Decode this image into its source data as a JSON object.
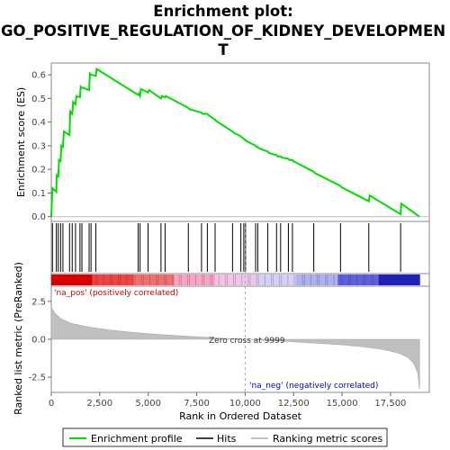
{
  "chart_data": {
    "type": "line",
    "title_line1": "Enrichment plot:",
    "title_line2": "GO_POSITIVE_REGULATION_OF_KIDNEY_DEVELOPMEN",
    "title_line3": "T",
    "top_panel": {
      "ylabel": "Enrichment score (ES)",
      "ylim": [
        -0.02,
        0.65
      ],
      "yticks": [
        0.0,
        0.1,
        0.2,
        0.3,
        0.4,
        0.5,
        0.6
      ],
      "ytick_labels": [
        "0.0",
        "0.1",
        "0.2",
        "0.3",
        "0.4",
        "0.5",
        "0.6"
      ],
      "series": [
        {
          "name": "Enrichment profile",
          "color": "#00dd00",
          "x": [
            0,
            60,
            260,
            280,
            360,
            400,
            480,
            520,
            600,
            650,
            940,
            980,
            1080,
            1130,
            1250,
            1300,
            1480,
            1520,
            1580,
            1640,
            1950,
            1990,
            2050,
            2090,
            2300,
            2340,
            4480,
            4520,
            4580,
            4620,
            4990,
            5040,
            5660,
            5700,
            5870,
            5920,
            7070,
            7120,
            7750,
            7800,
            8050,
            8100,
            8450,
            8500,
            9350,
            9400,
            9780,
            9830,
            9930,
            9970,
            10020,
            10060,
            10540,
            10580,
            10650,
            10690,
            11170,
            11210,
            11620,
            11660,
            11830,
            11880,
            12230,
            12270,
            12440,
            12480,
            13540,
            13580,
            14920,
            14960,
            16380,
            16420,
            18020,
            18060,
            18990
          ],
          "y": [
            0.0,
            0.12,
            0.105,
            0.175,
            0.17,
            0.24,
            0.235,
            0.3,
            0.295,
            0.36,
            0.345,
            0.445,
            0.435,
            0.485,
            0.475,
            0.51,
            0.505,
            0.55,
            0.545,
            0.545,
            0.535,
            0.605,
            0.6,
            0.6,
            0.595,
            0.625,
            0.515,
            0.52,
            0.51,
            0.54,
            0.525,
            0.535,
            0.5,
            0.51,
            0.505,
            0.51,
            0.46,
            0.455,
            0.44,
            0.435,
            0.435,
            0.43,
            0.41,
            0.405,
            0.36,
            0.355,
            0.34,
            0.335,
            0.33,
            0.325,
            0.325,
            0.32,
            0.3,
            0.295,
            0.295,
            0.29,
            0.275,
            0.27,
            0.26,
            0.255,
            0.255,
            0.25,
            0.245,
            0.24,
            0.24,
            0.235,
            0.19,
            0.185,
            0.13,
            0.125,
            0.065,
            0.09,
            0.01,
            0.055,
            0.0
          ]
        }
      ]
    },
    "hits": [
      60,
      260,
      360,
      480,
      600,
      940,
      1080,
      1250,
      1480,
      1580,
      1950,
      2050,
      2300,
      4480,
      4580,
      4990,
      5660,
      5870,
      7070,
      7750,
      8050,
      8450,
      9350,
      9780,
      9930,
      10020,
      10540,
      10650,
      11170,
      11620,
      11830,
      12230,
      12440,
      13540,
      14920,
      16380,
      18020
    ],
    "bottom_panel": {
      "ylabel": "Ranked list metric (PreRanked)",
      "ylim": [
        -3.5,
        3.5
      ],
      "yticks": [
        2.5,
        0.0,
        -2.5
      ],
      "ytick_labels": [
        "2.5",
        "0.0",
        "-2.5"
      ],
      "metric_x": [
        0,
        200,
        500,
        1000,
        2000,
        3000,
        4000,
        5000,
        6000,
        7000,
        8000,
        9000,
        9999,
        11000,
        12000,
        13000,
        14000,
        15000,
        16000,
        17000,
        17500,
        18000,
        18400,
        18700,
        18900,
        19000
      ],
      "metric_y": [
        2.1,
        1.7,
        1.35,
        1.05,
        0.8,
        0.62,
        0.48,
        0.37,
        0.28,
        0.2,
        0.13,
        0.06,
        0.0,
        -0.07,
        -0.13,
        -0.2,
        -0.28,
        -0.37,
        -0.48,
        -0.65,
        -0.78,
        -0.95,
        -1.2,
        -1.6,
        -2.2,
        -3.3
      ],
      "fill_color": "#c0c0c0",
      "zero_cross_label": "Zero cross at 9999",
      "zero_cross_x": 9999,
      "pos_label": "'na_pos' (positively correlated)",
      "neg_label": "'na_neg' (negatively correlated)",
      "pos_color": "#cc0000",
      "neg_color": "#0000cc"
    },
    "xlabel": "Rank in Ordered Dataset",
    "xlim": [
      0,
      19500
    ],
    "xticks": [
      0,
      2500,
      5000,
      7500,
      10000,
      12500,
      15000,
      17500
    ],
    "xtick_labels": [
      "0",
      "2,500",
      "5,000",
      "7,500",
      "10,000",
      "12,500",
      "15,000",
      "17,500"
    ],
    "n_genes": 19000,
    "heatmap_stops": [
      "#dd0000",
      "#ee4444",
      "#f07070",
      "#f4a6c8",
      "#f0c6e8",
      "#d8d0f4",
      "#b0b0ee",
      "#6060dd",
      "#2020bb"
    ],
    "legend": [
      {
        "label": "Enrichment profile",
        "color": "#00dd00"
      },
      {
        "label": "Hits",
        "color": "#000000"
      },
      {
        "label": "Ranking metric scores",
        "color": "#c0c0c0"
      }
    ]
  }
}
